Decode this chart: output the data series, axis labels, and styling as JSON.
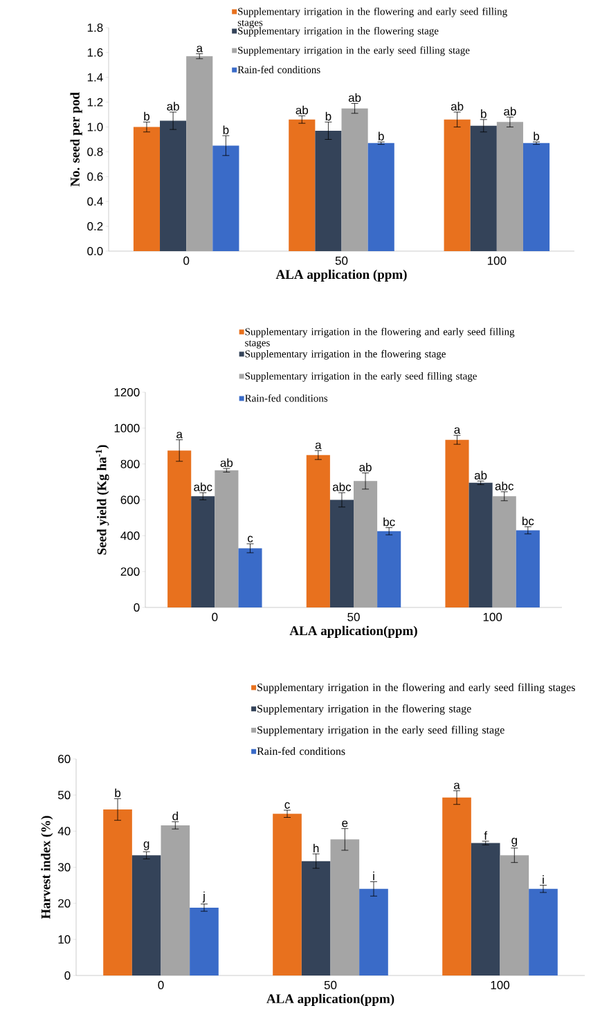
{
  "chart_data": [
    {
      "type": "bar",
      "categories": [
        "0",
        "50",
        "100"
      ],
      "xlabel": "ALA application (ppm)",
      "ylabel": "No. seed per pod",
      "ylim": [
        0,
        1.8
      ],
      "yticks": [
        {
          "value": 0,
          "label": "0.0"
        },
        0.2,
        0.4,
        0.6,
        0.8,
        {
          "value": 1,
          "label": "1.0"
        },
        1.2,
        1.4,
        1.6,
        1.8
      ],
      "legend": "top right",
      "series": [
        {
          "name": "Supplementary irrigation in the flowering and early seed filling stages",
          "color": "#e8711e",
          "values": [
            1.0,
            1.06,
            1.06
          ],
          "errors": [
            0.04,
            0.03,
            0.06
          ],
          "value_labels": [
            "b",
            "ab",
            "ab"
          ]
        },
        {
          "name": "Supplementary irrigation in the flowering stage",
          "color": "#344359",
          "values": [
            1.05,
            0.97,
            1.01
          ],
          "errors": [
            0.07,
            0.07,
            0.05
          ],
          "value_labels": [
            "ab",
            "b",
            "b"
          ]
        },
        {
          "name": "Supplementary irrigation in the early seed filling stage",
          "color": "#a5a5a5",
          "values": [
            1.57,
            1.15,
            1.04
          ],
          "errors": [
            0.02,
            0.04,
            0.04
          ],
          "value_labels": [
            "a",
            "ab",
            "ab"
          ]
        },
        {
          "name": "Rain-fed conditions",
          "color": "#3a6bc8",
          "values": [
            0.85,
            0.87,
            0.87
          ],
          "errors": [
            0.08,
            0.01,
            0.01
          ],
          "value_labels": [
            "b",
            "b",
            "b"
          ]
        }
      ]
    },
    {
      "type": "bar",
      "categories": [
        "0",
        "50",
        "100"
      ],
      "xlabel": "ALA application(ppm)",
      "ylabel": "Seed yield (Kg ha$^{-1}$)",
      "ylim": [
        0,
        1200
      ],
      "yticks": [
        0,
        200,
        400,
        600,
        800,
        1000,
        1200
      ],
      "legend": "top right",
      "series": [
        {
          "name": "Supplementary irrigation in the flowering and early seed filling stages",
          "color": "#e8711e",
          "values": [
            875,
            850,
            935
          ],
          "errors": [
            60,
            25,
            25
          ],
          "value_labels": [
            "a",
            "a",
            "a"
          ]
        },
        {
          "name": "Supplementary irrigation in the flowering stage",
          "color": "#344359",
          "values": [
            620,
            600,
            695
          ],
          "errors": [
            20,
            40,
            10
          ],
          "value_labels": [
            "abc",
            "abc",
            "ab"
          ]
        },
        {
          "name": "Supplementary irrigation in the early seed filling stage",
          "color": "#a5a5a5",
          "values": [
            765,
            705,
            620
          ],
          "errors": [
            10,
            45,
            25
          ],
          "value_labels": [
            "ab",
            "ab",
            "abc"
          ]
        },
        {
          "name": "Rain-fed conditions",
          "color": "#3a6bc8",
          "values": [
            330,
            425,
            430
          ],
          "errors": [
            25,
            20,
            20
          ],
          "value_labels": [
            "c",
            "bc",
            "bc"
          ]
        }
      ]
    },
    {
      "type": "bar",
      "categories": [
        "0",
        "50",
        "100"
      ],
      "xlabel": "ALA application(ppm)",
      "ylabel": "Harvest index (%)",
      "ylim": [
        0,
        60
      ],
      "yticks": [
        0,
        10,
        20,
        30,
        40,
        50,
        60
      ],
      "legend": "top right",
      "series": [
        {
          "name": "Supplementary irrigation in the flowering and early seed filling stages",
          "color": "#e8711e",
          "values": [
            46,
            44.8,
            49.3
          ],
          "errors": [
            3,
            1,
            1.9
          ],
          "value_labels": [
            "b",
            "c",
            "a"
          ]
        },
        {
          "name": "Supplementary irrigation in the flowering stage",
          "color": "#344359",
          "values": [
            33.3,
            31.7,
            36.7
          ],
          "errors": [
            1,
            2,
            0.5
          ],
          "value_labels": [
            "g",
            "h",
            "f"
          ]
        },
        {
          "name": "Supplementary irrigation in the early seed filling stage",
          "color": "#a5a5a5",
          "values": [
            41.6,
            37.7,
            33.3
          ],
          "errors": [
            1,
            3,
            2
          ],
          "value_labels": [
            "d",
            "e",
            "g"
          ]
        },
        {
          "name": "Rain-fed conditions",
          "color": "#3a6bc8",
          "values": [
            18.8,
            24,
            24
          ],
          "errors": [
            1,
            2,
            1
          ],
          "value_labels": [
            "j",
            "i",
            "i"
          ]
        }
      ]
    }
  ]
}
